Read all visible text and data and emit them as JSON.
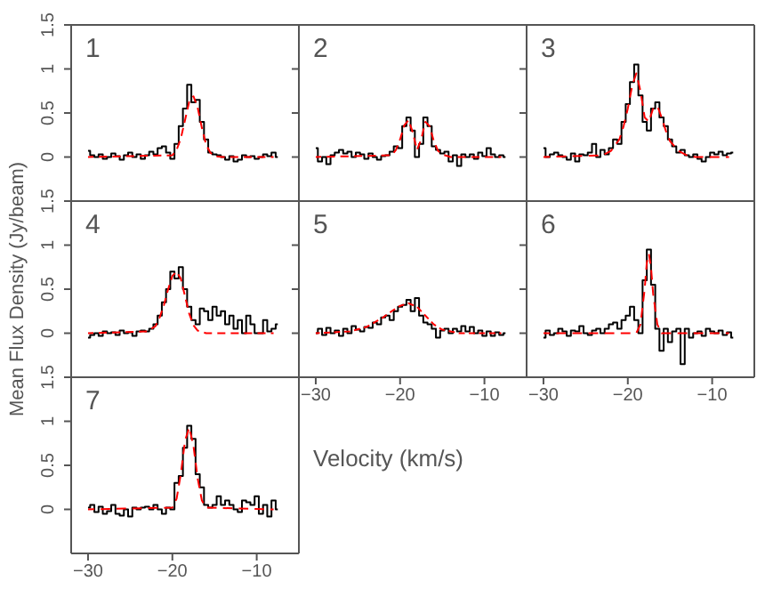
{
  "chart_data": [
    {
      "type": "step",
      "annotations": [
        "1"
      ],
      "xlim": [
        -32,
        -5
      ],
      "xticks": [
        -30,
        -20,
        -10
      ],
      "ylim": [
        -0.5,
        1.5
      ],
      "yticks": [
        0,
        0.5,
        1,
        1.5
      ],
      "tick_labels": "y",
      "x": [
        -30,
        -29.5,
        -29,
        -28.5,
        -28,
        -27.5,
        -27,
        -26.5,
        -26,
        -25.5,
        -25,
        -24.5,
        -24,
        -23.5,
        -23,
        -22.5,
        -22,
        -21.5,
        -21,
        -20.5,
        -20,
        -19.5,
        -19,
        -18.5,
        -18,
        -17.5,
        -17,
        -16.5,
        -16,
        -15.5,
        -15,
        -14.5,
        -14,
        -13.5,
        -13,
        -12.5,
        -12,
        -11.5,
        -11,
        -10.5,
        -10,
        -9.5,
        -9,
        -8.5,
        -8,
        -7.5
      ],
      "series": [
        {
          "type": "step",
          "color": "#000000",
          "values": [
            0.07,
            0.02,
            0,
            0.03,
            -0.02,
            0,
            0.04,
            0.01,
            -0.03,
            0.02,
            0.05,
            0,
            0.03,
            -0.02,
            0.02,
            0.06,
            0.03,
            0.1,
            0.12,
            0.05,
            -0.02,
            0.15,
            0.35,
            0.55,
            0.82,
            0.62,
            0.65,
            0.4,
            0.2,
            0.05,
            0.03,
            0.02,
            0,
            -0.03,
            0.01,
            -0.05,
            -0.03,
            0.02,
            0,
            0.01,
            -0.02,
            0,
            0.03,
            0.01,
            0.05,
            0
          ]
        },
        {
          "type": "line",
          "color": "#ff0000",
          "line_style": "dashed",
          "x": [
            -30,
            -20,
            -19.5,
            -19,
            -18.5,
            -18,
            -17.5,
            -17,
            -16.5,
            -16,
            -15.5,
            -15,
            -14,
            -8
          ],
          "values": [
            0,
            0.02,
            0.08,
            0.21,
            0.42,
            0.63,
            0.69,
            0.56,
            0.33,
            0.14,
            0.05,
            0.01,
            0,
            0
          ]
        }
      ]
    },
    {
      "type": "step",
      "annotations": [
        "2"
      ],
      "xlim": [
        -32,
        -5
      ],
      "xticks": [
        -30,
        -20,
        -10
      ],
      "ylim": [
        -0.5,
        1.5
      ],
      "yticks": [
        0,
        0.5,
        1,
        1.5
      ],
      "tick_labels": false,
      "x": [
        -30,
        -29.5,
        -29,
        -28.5,
        -28,
        -27.5,
        -27,
        -26.5,
        -26,
        -25.5,
        -25,
        -24.5,
        -24,
        -23.5,
        -23,
        -22.5,
        -22,
        -21.5,
        -21,
        -20.5,
        -20,
        -19.5,
        -19,
        -18.5,
        -18,
        -17.5,
        -17,
        -16.5,
        -16,
        -15.5,
        -15,
        -14.5,
        -14,
        -13.5,
        -13,
        -12.5,
        -12,
        -11.5,
        -11,
        -10.5,
        -10,
        -9.5,
        -9,
        -8.5,
        -8,
        -7.5
      ],
      "series": [
        {
          "type": "step",
          "color": "#000000",
          "values": [
            0.1,
            -0.05,
            0,
            -0.08,
            0.02,
            0.05,
            0.08,
            0.04,
            0.06,
            0,
            0.05,
            0.03,
            -0.02,
            0.04,
            0,
            -0.03,
            0.01,
            0.02,
            0.06,
            0.12,
            0.1,
            0.35,
            0.45,
            0.3,
            0,
            0.15,
            0.45,
            0.35,
            0.12,
            0.08,
            0.04,
            0.06,
            -0.05,
            0.02,
            -0.1,
            0.03,
            0,
            0.03,
            -0.02,
            0.05,
            0.01,
            0.1,
            0.03,
            0,
            0.02,
            0
          ]
        },
        {
          "type": "line",
          "color": "#ff0000",
          "line_style": "dashed",
          "x": [
            -30,
            -21,
            -20.5,
            -20,
            -19.5,
            -19,
            -18.5,
            -18,
            -17.5,
            -17,
            -16.5,
            -16,
            -15.5,
            -15,
            -14,
            -8
          ],
          "values": [
            0,
            0.02,
            0.08,
            0.2,
            0.36,
            0.42,
            0.28,
            0.08,
            0.2,
            0.4,
            0.35,
            0.18,
            0.07,
            0.03,
            0,
            0
          ]
        }
      ]
    },
    {
      "type": "step",
      "annotations": [
        "3"
      ],
      "xlim": [
        -32,
        -5
      ],
      "xticks": [
        -30,
        -20,
        -10
      ],
      "ylim": [
        -0.5,
        1.5
      ],
      "yticks": [
        0,
        0.5,
        1,
        1.5
      ],
      "tick_labels": false,
      "x": [
        -30,
        -29.5,
        -29,
        -28.5,
        -28,
        -27.5,
        -27,
        -26.5,
        -26,
        -25.5,
        -25,
        -24.5,
        -24,
        -23.5,
        -23,
        -22.5,
        -22,
        -21.5,
        -21,
        -20.5,
        -20,
        -19.5,
        -19,
        -18.5,
        -18,
        -17.5,
        -17,
        -16.5,
        -16,
        -15.5,
        -15,
        -14.5,
        -14,
        -13.5,
        -13,
        -12.5,
        -12,
        -11.5,
        -11,
        -10.5,
        -10,
        -9.5,
        -9,
        -8.5,
        -8,
        -7.5
      ],
      "series": [
        {
          "type": "step",
          "color": "#000000",
          "values": [
            0.1,
            0,
            0.03,
            0.05,
            0.02,
            0,
            -0.03,
            0.04,
            -0.05,
            0.03,
            0.02,
            0.05,
            0.15,
            0,
            0.08,
            0.03,
            0.1,
            0.2,
            0.15,
            0.4,
            0.6,
            0.85,
            1.05,
            0.7,
            0.4,
            0.3,
            0.55,
            0.62,
            0.45,
            0.35,
            0.2,
            0.12,
            0.05,
            0.08,
            0.02,
            0,
            0.03,
            -0.02,
            -0.05,
            0,
            0.05,
            0.03,
            0.06,
            0.02,
            0.04,
            0.05
          ]
        },
        {
          "type": "line",
          "color": "#ff0000",
          "line_style": "dashed",
          "x": [
            -30,
            -23,
            -22,
            -21,
            -20.5,
            -20,
            -19.5,
            -19,
            -18.5,
            -18,
            -17.5,
            -17,
            -16.5,
            -16,
            -15.5,
            -15,
            -14,
            -13,
            -12,
            -8
          ],
          "values": [
            0,
            0.02,
            0.07,
            0.2,
            0.35,
            0.55,
            0.8,
            0.95,
            0.75,
            0.45,
            0.4,
            0.55,
            0.58,
            0.45,
            0.3,
            0.18,
            0.07,
            0.02,
            0,
            0
          ]
        }
      ]
    },
    {
      "type": "step",
      "annotations": [
        "4"
      ],
      "ylabel": "Mean Flux Density (Jy/beam)",
      "xlim": [
        -32,
        -5
      ],
      "xticks": [
        -30,
        -20,
        -10
      ],
      "ylim": [
        -0.5,
        1.5
      ],
      "yticks": [
        0,
        0.5,
        1,
        1.5
      ],
      "tick_labels": "y",
      "x": [
        -30,
        -29.5,
        -29,
        -28.5,
        -28,
        -27.5,
        -27,
        -26.5,
        -26,
        -25.5,
        -25,
        -24.5,
        -24,
        -23.5,
        -23,
        -22.5,
        -22,
        -21.5,
        -21,
        -20.5,
        -20,
        -19.5,
        -19,
        -18.5,
        -18,
        -17.5,
        -17,
        -16.5,
        -16,
        -15.5,
        -15,
        -14.5,
        -14,
        -13.5,
        -13,
        -12.5,
        -12,
        -11.5,
        -11,
        -10.5,
        -10,
        -9.5,
        -9,
        -8.5,
        -8,
        -7.5
      ],
      "series": [
        {
          "type": "step",
          "color": "#000000",
          "values": [
            -0.05,
            -0.02,
            0,
            -0.03,
            0.02,
            0,
            0.01,
            -0.02,
            0.03,
            0,
            0.01,
            -0.03,
            0.02,
            0.03,
            0.02,
            0.05,
            0.1,
            0.2,
            0.35,
            0.5,
            0.7,
            0.62,
            0.75,
            0.5,
            0.3,
            0.15,
            0.1,
            0.28,
            0.25,
            0.15,
            0.3,
            0.2,
            0.25,
            0.1,
            0.2,
            0.05,
            0.15,
            0,
            0.2,
            0.1,
            0,
            0,
            0.15,
            0.02,
            0.05,
            0.1
          ]
        },
        {
          "type": "line",
          "color": "#ff0000",
          "line_style": "dashed",
          "x": [
            -30,
            -23,
            -22,
            -21.5,
            -21,
            -20.5,
            -20,
            -19.5,
            -19,
            -18.5,
            -18,
            -17.5,
            -17,
            -16,
            -8
          ],
          "values": [
            0,
            0.02,
            0.08,
            0.18,
            0.32,
            0.5,
            0.65,
            0.7,
            0.62,
            0.42,
            0.22,
            0.09,
            0.03,
            0,
            0
          ]
        }
      ]
    },
    {
      "type": "step",
      "annotations": [
        "5"
      ],
      "xlabel": "Velocity (km/s)",
      "xlim": [
        -32,
        -5
      ],
      "xticks": [
        -30,
        -20,
        -10
      ],
      "ylim": [
        -0.5,
        1.5
      ],
      "yticks": [
        0,
        0.5,
        1,
        1.5
      ],
      "tick_labels": "x",
      "x": [
        -30,
        -29.5,
        -29,
        -28.5,
        -28,
        -27.5,
        -27,
        -26.5,
        -26,
        -25.5,
        -25,
        -24.5,
        -24,
        -23.5,
        -23,
        -22.5,
        -22,
        -21.5,
        -21,
        -20.5,
        -20,
        -19.5,
        -19,
        -18.5,
        -18,
        -17.5,
        -17,
        -16.5,
        -16,
        -15.5,
        -15,
        -14.5,
        -14,
        -13.5,
        -13,
        -12.5,
        -12,
        -11.5,
        -11,
        -10.5,
        -10,
        -9.5,
        -9,
        -8.5,
        -8,
        -7.5
      ],
      "series": [
        {
          "type": "step",
          "color": "#000000",
          "values": [
            0,
            0.05,
            -0.02,
            0.06,
            0,
            0.03,
            -0.03,
            0.05,
            0,
            0.08,
            0.04,
            0.02,
            0.07,
            0.06,
            0.12,
            0.1,
            0.18,
            0.2,
            0.15,
            0.25,
            0.3,
            0.32,
            0.38,
            0.25,
            0.4,
            0.2,
            0.12,
            0.1,
            0.05,
            -0.05,
            0.03,
            0.05,
            0,
            0.05,
            0.02,
            0.08,
            0.02,
            0.07,
            0,
            0.03,
            -0.03,
            0.02,
            -0.03,
            0.01,
            -0.02,
            0
          ]
        },
        {
          "type": "line",
          "color": "#ff0000",
          "line_style": "dashed",
          "x": [
            -30,
            -26,
            -24,
            -22,
            -21,
            -20,
            -19,
            -18,
            -17,
            -16,
            -15,
            -13,
            -8
          ],
          "values": [
            0,
            0.02,
            0.07,
            0.18,
            0.25,
            0.31,
            0.34,
            0.3,
            0.2,
            0.1,
            0.04,
            0,
            0
          ]
        }
      ]
    },
    {
      "type": "step",
      "annotations": [
        "6"
      ],
      "xlim": [
        -32,
        -5
      ],
      "xticks": [
        -30,
        -20,
        -10
      ],
      "ylim": [
        -0.5,
        1.5
      ],
      "yticks": [
        0,
        0.5,
        1,
        1.5
      ],
      "tick_labels": "x",
      "x": [
        -30,
        -29.5,
        -29,
        -28.5,
        -28,
        -27.5,
        -27,
        -26.5,
        -26,
        -25.5,
        -25,
        -24.5,
        -24,
        -23.5,
        -23,
        -22.5,
        -22,
        -21.5,
        -21,
        -20.5,
        -20,
        -19.5,
        -19,
        -18.5,
        -18,
        -17.5,
        -17,
        -16.5,
        -16,
        -15.5,
        -15,
        -14.5,
        -14,
        -13.5,
        -13,
        -12.5,
        -12,
        -11.5,
        -11,
        -10.5,
        -10,
        -9.5,
        -9,
        -8.5,
        -8,
        -7.5
      ],
      "series": [
        {
          "type": "step",
          "color": "#000000",
          "values": [
            -0.05,
            0.03,
            -0.02,
            0,
            0.05,
            0.02,
            -0.03,
            0.03,
            0.02,
            0.08,
            0,
            -0.02,
            0.03,
            0.05,
            0,
            0.05,
            0.1,
            0.12,
            0.05,
            0.15,
            0.2,
            0.3,
            0.15,
            0,
            0.6,
            0.95,
            0.55,
            0.05,
            -0.2,
            0.05,
            -0.1,
            0.02,
            0.05,
            -0.35,
            0.05,
            -0.05,
            0,
            0.02,
            -0.03,
            0.05,
            0.02,
            0,
            0.03,
            -0.02,
            0.01,
            -0.05
          ]
        },
        {
          "type": "line",
          "color": "#ff0000",
          "line_style": "dashed",
          "x": [
            -30,
            -19,
            -18.5,
            -18,
            -17.75,
            -17.5,
            -17.25,
            -17,
            -16.5,
            -16,
            -8
          ],
          "values": [
            0,
            0,
            0.1,
            0.5,
            0.8,
            0.9,
            0.75,
            0.45,
            0.1,
            0,
            0
          ]
        }
      ]
    },
    {
      "type": "step",
      "annotations": [
        "7"
      ],
      "xlim": [
        -32,
        -5
      ],
      "xticks": [
        -30,
        -20,
        -10
      ],
      "ylim": [
        -0.5,
        1.5
      ],
      "yticks": [
        0,
        0.5,
        1,
        1.5
      ],
      "x": [
        -30,
        -29.5,
        -29,
        -28.5,
        -28,
        -27.5,
        -27,
        -26.5,
        -26,
        -25.5,
        -25,
        -24.5,
        -24,
        -23.5,
        -23,
        -22.5,
        -22,
        -21.5,
        -21,
        -20.5,
        -20,
        -19.5,
        -19,
        -18.5,
        -18,
        -17.5,
        -17,
        -16.5,
        -16,
        -15.5,
        -15,
        -14.5,
        -14,
        -13.5,
        -13,
        -12.5,
        -12,
        -11.5,
        -11,
        -10.5,
        -10,
        -9.5,
        -9,
        -8.5,
        -8,
        -7.5
      ],
      "series": [
        {
          "type": "step",
          "color": "#000000",
          "values": [
            0.02,
            0.05,
            -0.03,
            0.03,
            -0.05,
            -0.02,
            0.05,
            -0.05,
            -0.07,
            0,
            -0.08,
            0.02,
            0,
            0.02,
            0.03,
            0,
            0.05,
            0,
            -0.05,
            0.02,
            0,
            0.3,
            0.38,
            0.7,
            0.95,
            0.8,
            0.4,
            0.25,
            0.05,
            0.02,
            0.05,
            0.15,
            0.05,
            0.1,
            0.05,
            0,
            -0.03,
            0.1,
            0.08,
            0.05,
            0.15,
            -0.05,
            0.05,
            -0.08,
            0.1,
            0
          ]
        },
        {
          "type": "line",
          "color": "#ff0000",
          "line_style": "dashed",
          "x": [
            -30,
            -20,
            -19.5,
            -19,
            -18.5,
            -18,
            -17.5,
            -17,
            -16.5,
            -16,
            -8
          ],
          "values": [
            0,
            0.02,
            0.12,
            0.4,
            0.78,
            0.93,
            0.72,
            0.35,
            0.1,
            0.02,
            0
          ]
        }
      ]
    }
  ]
}
